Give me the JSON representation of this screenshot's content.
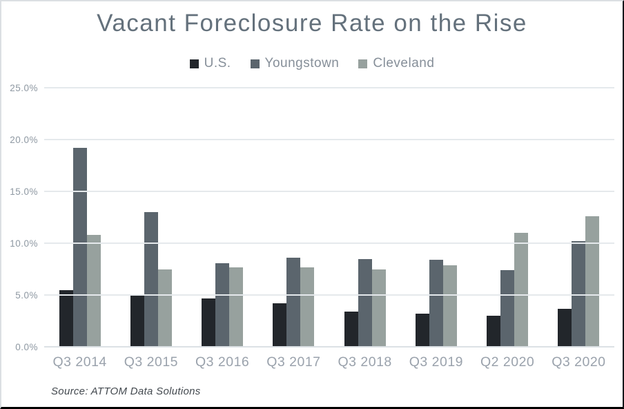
{
  "chart_data": {
    "type": "bar",
    "title": "Vacant Foreclosure Rate on the Rise",
    "categories": [
      "Q3 2014",
      "Q3 2015",
      "Q3 2016",
      "Q3 2017",
      "Q3 2018",
      "Q3 2019",
      "Q2 2020",
      "Q3 2020"
    ],
    "series": [
      {
        "name": "U.S.",
        "color": "#22262b",
        "values": [
          5.5,
          5.0,
          4.7,
          4.2,
          3.4,
          3.2,
          3.0,
          3.7
        ]
      },
      {
        "name": "Youngstown",
        "color": "#5b656d",
        "values": [
          19.2,
          13.0,
          8.1,
          8.6,
          8.5,
          8.4,
          7.4,
          10.2
        ]
      },
      {
        "name": "Cleveland",
        "color": "#97a19e",
        "values": [
          10.8,
          7.5,
          7.7,
          7.7,
          7.5,
          7.9,
          11.0,
          12.6
        ]
      }
    ],
    "xlabel": "",
    "ylabel": "",
    "ylim": [
      0,
      25
    ],
    "yticks": [
      {
        "value": 0,
        "label": "0.0%"
      },
      {
        "value": 5,
        "label": "5.0%"
      },
      {
        "value": 10,
        "label": "10.0%"
      },
      {
        "value": 15,
        "label": "15.0%"
      },
      {
        "value": 20,
        "label": "20.0%"
      },
      {
        "value": 25,
        "label": "25.0%"
      }
    ],
    "grid": true,
    "legend_position": "top",
    "source": "Source: ATTOM Data Solutions"
  }
}
